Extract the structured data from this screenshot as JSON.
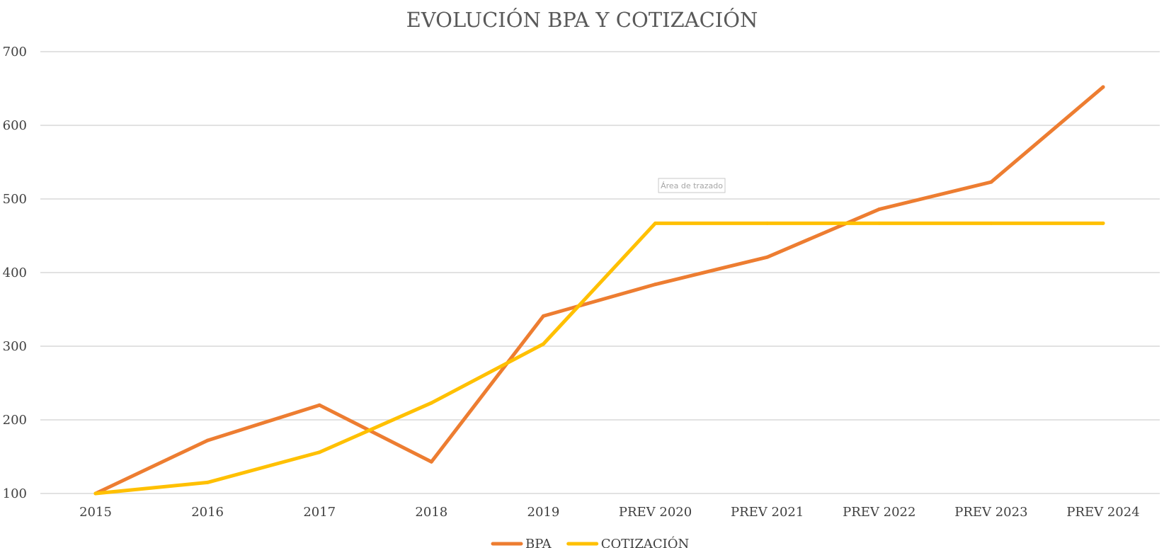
{
  "chart_data": {
    "type": "line",
    "title": "EVOLUCIÓN BPA Y COTIZACIÓN",
    "xlabel": "",
    "ylabel": "",
    "categories": [
      "2015",
      "2016",
      "2017",
      "2018",
      "2019",
      "PREV 2020",
      "PREV 2021",
      "PREV 2022",
      "PREV 2023",
      "PREV 2024"
    ],
    "ylim": [
      100,
      700
    ],
    "yticks": [
      100,
      200,
      300,
      400,
      500,
      600,
      700
    ],
    "grid": true,
    "legend_position": "bottom",
    "series": [
      {
        "name": "BPA",
        "color": "#ED7D31",
        "values": [
          100,
          172,
          220,
          143,
          341,
          384,
          421,
          486,
          523,
          652
        ]
      },
      {
        "name": "COTIZACIÓN",
        "color": "#FFC000",
        "values": [
          100,
          115,
          156,
          223,
          303,
          467,
          467,
          467,
          467,
          467
        ]
      }
    ],
    "tooltip": "Área de trazado"
  }
}
